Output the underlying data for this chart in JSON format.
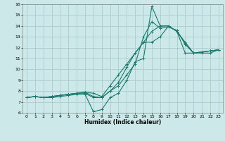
{
  "xlabel": "Humidex (Indice chaleur)",
  "xlim": [
    -0.5,
    23.5
  ],
  "ylim": [
    6,
    16
  ],
  "xticks": [
    0,
    1,
    2,
    3,
    4,
    5,
    6,
    7,
    8,
    9,
    10,
    11,
    12,
    13,
    14,
    15,
    16,
    17,
    18,
    19,
    20,
    21,
    22,
    23
  ],
  "yticks": [
    6,
    7,
    8,
    9,
    10,
    11,
    12,
    13,
    14,
    15,
    16
  ],
  "bg_color": "#cce8e8",
  "grid_color": "#aacccc",
  "line_color": "#1a7a6e",
  "lines": [
    {
      "x": [
        0,
        1,
        2,
        3,
        4,
        5,
        6,
        7,
        8,
        9,
        10,
        11,
        12,
        13,
        14,
        15,
        16,
        17,
        18,
        19,
        20,
        21,
        22,
        23
      ],
      "y": [
        7.4,
        7.5,
        7.4,
        7.4,
        7.5,
        7.6,
        7.7,
        7.7,
        6.1,
        6.3,
        7.4,
        7.8,
        9.0,
        10.7,
        11.0,
        15.8,
        14.0,
        14.0,
        13.5,
        12.4,
        11.5,
        11.6,
        11.7,
        11.8
      ]
    },
    {
      "x": [
        0,
        1,
        2,
        3,
        4,
        5,
        6,
        7,
        8,
        9,
        10,
        11,
        12,
        13,
        14,
        15,
        16,
        17,
        18,
        19,
        20,
        21,
        22,
        23
      ],
      "y": [
        7.4,
        7.5,
        7.4,
        7.5,
        7.6,
        7.7,
        7.8,
        7.8,
        7.4,
        7.4,
        8.0,
        8.5,
        9.5,
        10.5,
        13.0,
        14.4,
        13.8,
        13.9,
        13.6,
        12.3,
        11.5,
        11.6,
        11.7,
        11.8
      ]
    },
    {
      "x": [
        0,
        1,
        2,
        3,
        4,
        5,
        6,
        7,
        8,
        9,
        10,
        11,
        12,
        13,
        14,
        15,
        16,
        17,
        18,
        19,
        20,
        21,
        22,
        23
      ],
      "y": [
        7.4,
        7.5,
        7.4,
        7.5,
        7.6,
        7.7,
        7.8,
        7.9,
        7.8,
        7.5,
        8.5,
        9.5,
        10.5,
        11.5,
        12.5,
        13.5,
        14.0,
        14.0,
        13.5,
        12.5,
        11.5,
        11.5,
        11.5,
        11.8
      ]
    },
    {
      "x": [
        0,
        1,
        2,
        3,
        4,
        5,
        6,
        7,
        8,
        9,
        10,
        11,
        12,
        13,
        14,
        15,
        16,
        17,
        18,
        19,
        20,
        21,
        22,
        23
      ],
      "y": [
        7.4,
        7.5,
        7.4,
        7.5,
        7.6,
        7.7,
        7.8,
        7.9,
        7.5,
        7.4,
        8.0,
        8.8,
        10.2,
        11.5,
        12.5,
        12.5,
        13.0,
        14.0,
        13.5,
        11.5,
        11.5,
        11.6,
        11.7,
        11.8
      ]
    }
  ]
}
